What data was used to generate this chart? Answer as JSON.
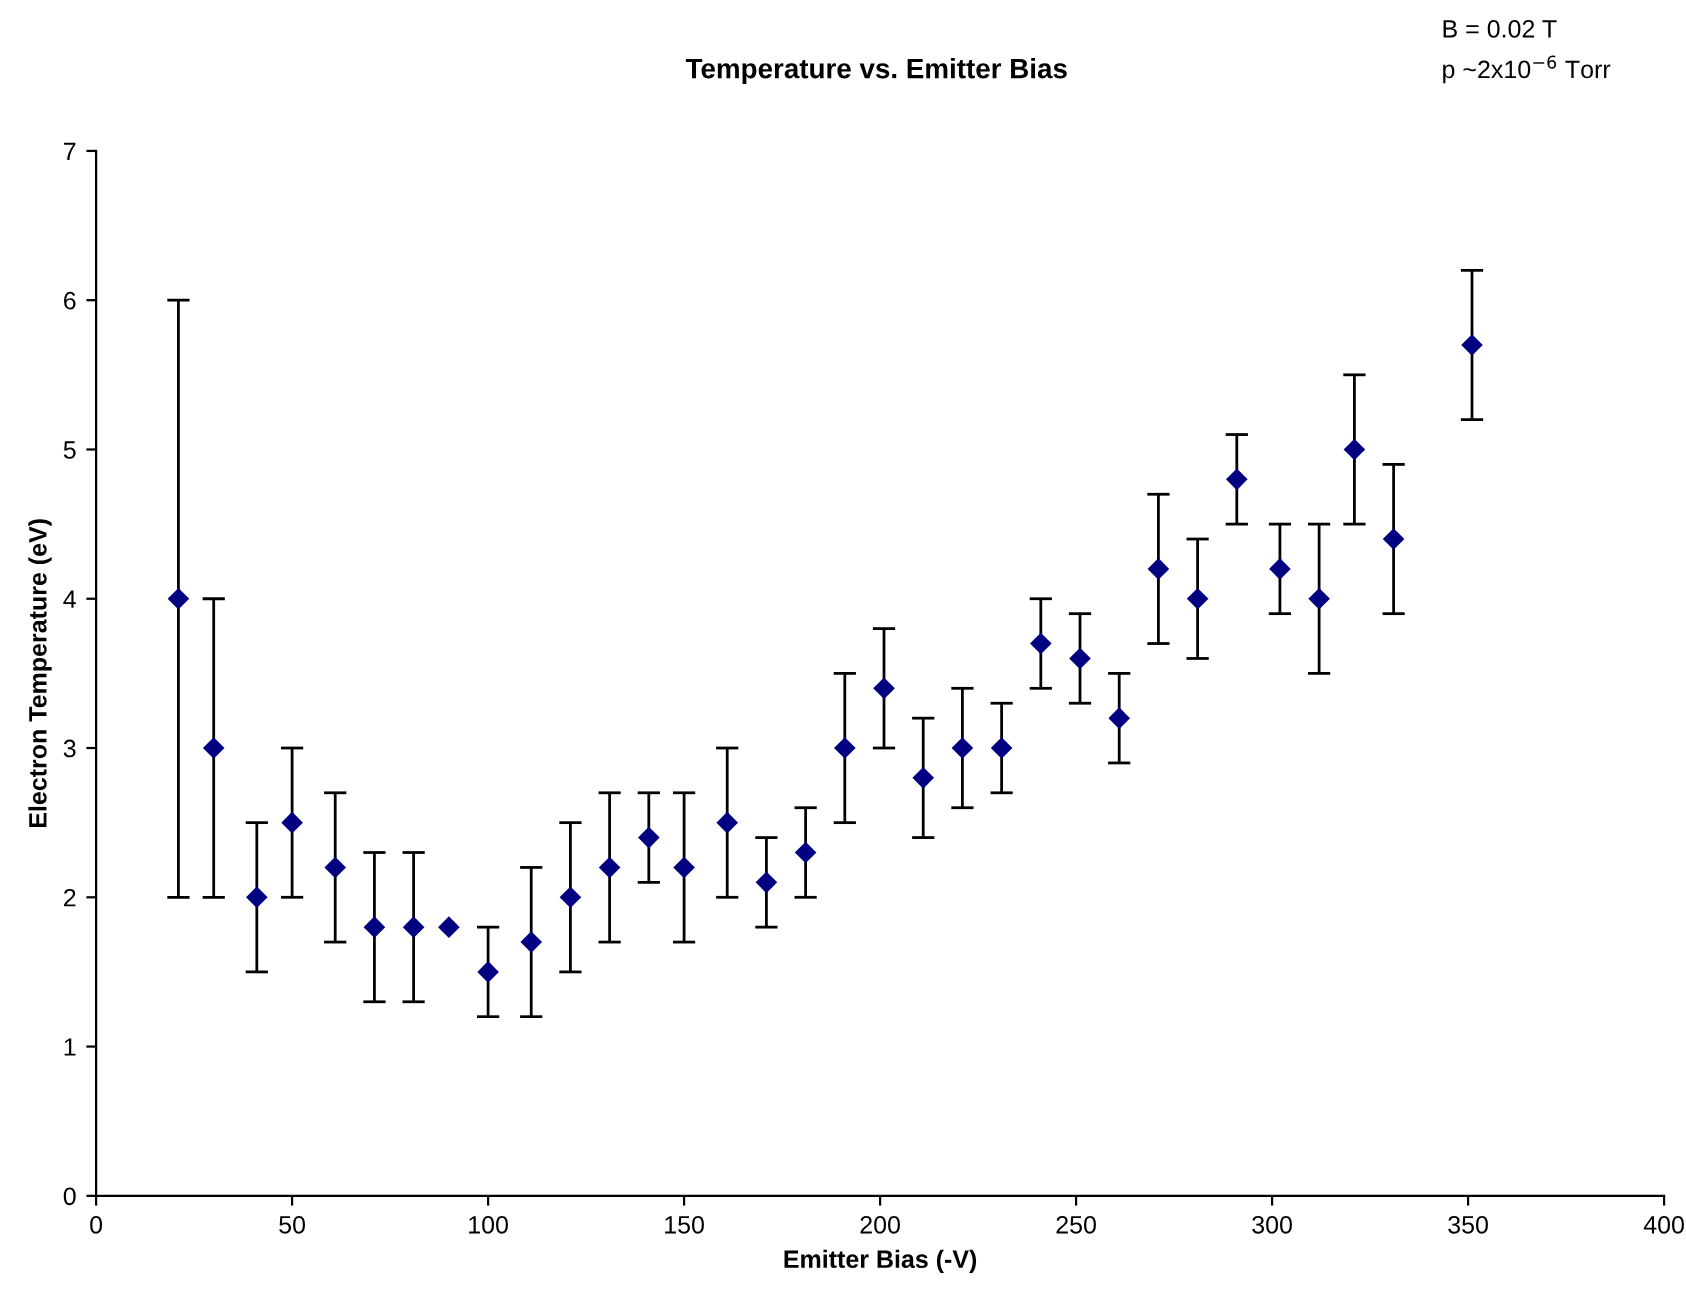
{
  "chart_data": {
    "type": "scatter",
    "title": "Temperature vs. Emitter Bias",
    "xlabel": "Emitter Bias (-V)",
    "ylabel": "Electron Temperature (eV)",
    "annotations": [
      "B = 0.02 T",
      "p ~2x10$^{−6}$ Torr"
    ],
    "x": [
      21,
      30,
      41,
      50,
      61,
      71,
      81,
      90,
      100,
      111,
      121,
      131,
      141,
      150,
      161,
      171,
      181,
      191,
      201,
      211,
      221,
      231,
      241,
      251,
      261,
      271,
      281,
      291,
      302,
      312,
      321,
      331,
      351
    ],
    "series": [
      {
        "color": "#000080",
        "values": [
          4.0,
          3.0,
          2.0,
          2.5,
          2.2,
          1.8,
          1.8,
          1.8,
          1.5,
          1.7,
          2.0,
          2.2,
          2.4,
          2.2,
          2.5,
          2.1,
          2.3,
          3.0,
          3.4,
          2.8,
          3.0,
          3.0,
          3.7,
          3.6,
          3.2,
          4.2,
          4.0,
          4.8,
          4.2,
          4.0,
          5.0,
          4.4,
          5.7
        ],
        "errors": [
          [
            2,
            6
          ],
          [
            2,
            4
          ],
          [
            1.5,
            2.5
          ],
          [
            2,
            3
          ],
          [
            1.7,
            2.7
          ],
          [
            1.3,
            2.3
          ],
          [
            1.3,
            2.3
          ],
          null,
          [
            1.2,
            1.8
          ],
          [
            1.2,
            2.2
          ],
          [
            1.5,
            2.5
          ],
          [
            1.7,
            2.7
          ],
          [
            2.1,
            2.7
          ],
          [
            1.7,
            2.7
          ],
          [
            2,
            3
          ],
          [
            1.8,
            2.4
          ],
          [
            2,
            2.6
          ],
          [
            2.5,
            3.5
          ],
          [
            3,
            3.8
          ],
          [
            2.4,
            3.2
          ],
          [
            2.6,
            3.4
          ],
          [
            2.7,
            3.3
          ],
          [
            3.4,
            4.0
          ],
          [
            3.3,
            3.9
          ],
          [
            2.9,
            3.5
          ],
          [
            3.7,
            4.7
          ],
          [
            3.6,
            4.4
          ],
          [
            4.5,
            5.1
          ],
          [
            3.9,
            4.5
          ],
          [
            3.5,
            4.5
          ],
          [
            4.5,
            5.5
          ],
          [
            3.9,
            4.9
          ],
          [
            5.2,
            6.2
          ]
        ]
      }
    ],
    "xlim": [
      0,
      400
    ],
    "xticks": [
      0,
      50,
      100,
      150,
      200,
      250,
      300,
      350,
      400
    ],
    "ylim": [
      0,
      7
    ],
    "yticks": [
      0,
      1,
      2,
      3,
      4,
      5,
      6,
      7
    ],
    "marker": "diamond",
    "grid": false,
    "legend": false
  }
}
